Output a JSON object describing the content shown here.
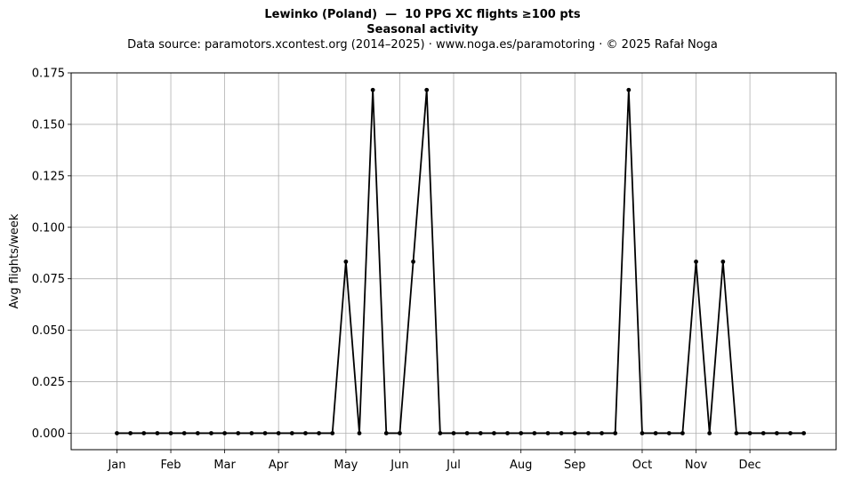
{
  "chart_data": {
    "type": "line",
    "title": "Lewinko (Poland)  —  10 PPG XC flights ≥100 pts",
    "subtitle": "Seasonal activity",
    "caption": "Data source: paramotors.xcontest.org (2014–2025)  ·  www.noga.es/paramotoring  ·  © 2025 Rafał Noga",
    "xlabel": "",
    "ylabel": "Avg flights/week",
    "ylim": [
      -0.008,
      0.175
    ],
    "yticks": [
      "0.000",
      "0.025",
      "0.050",
      "0.075",
      "0.100",
      "0.125",
      "0.150",
      "0.175"
    ],
    "ytick_values": [
      0,
      0.025,
      0.05,
      0.075,
      0.1,
      0.125,
      0.15,
      0.175
    ],
    "xlim": [
      -2.4,
      54.4
    ],
    "xticks": [
      "Jan",
      "Feb",
      "Mar",
      "Apr",
      "May",
      "Jun",
      "Jul",
      "Aug",
      "Sep",
      "Oct",
      "Nov",
      "Dec"
    ],
    "xtick_weeks": [
      1,
      5,
      9,
      13,
      18,
      22,
      26,
      31,
      35,
      40,
      44,
      48
    ],
    "grid": true,
    "line_color": "#000000",
    "series": [
      {
        "x": [
          1,
          2,
          3,
          4,
          5,
          6,
          7,
          8,
          9,
          10,
          11,
          12,
          13,
          14,
          15,
          16,
          17,
          18,
          19,
          20,
          21,
          22,
          23,
          24,
          25,
          26,
          27,
          28,
          29,
          30,
          31,
          32,
          33,
          34,
          35,
          36,
          37,
          38,
          39,
          40,
          41,
          42,
          43,
          44,
          45,
          46,
          47,
          48,
          49,
          50,
          51,
          52
        ],
        "values": [
          0,
          0,
          0,
          0,
          0,
          0,
          0,
          0,
          0,
          0,
          0,
          0,
          0,
          0,
          0,
          0,
          0,
          0.0833,
          0,
          0.1667,
          0,
          0,
          0.0833,
          0.1667,
          0,
          0,
          0,
          0,
          0,
          0,
          0,
          0,
          0,
          0,
          0,
          0,
          0,
          0,
          0.1667,
          0,
          0,
          0,
          0,
          0.0833,
          0,
          0.0833,
          0,
          0,
          0,
          0,
          0,
          0
        ]
      }
    ]
  }
}
